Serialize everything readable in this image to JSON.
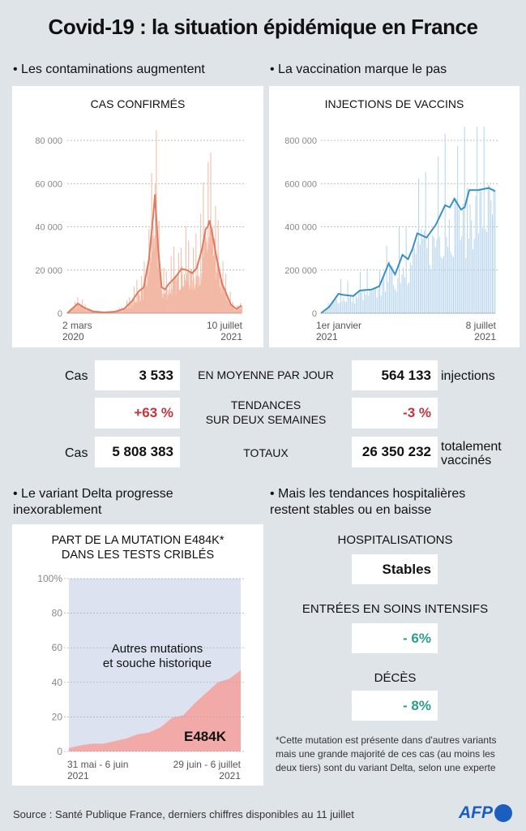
{
  "title": "Covid-19 : la situation épidémique en France",
  "bullets": {
    "cases": "• Les contaminations augmentent",
    "vaccine": "• La vaccination marque le pas",
    "variant": "• Le variant Delta progresse inexorablement",
    "hospital": "• Mais les tendances hospitalières restent stables ou en baisse"
  },
  "stats": {
    "row1": {
      "left_label": "Cas",
      "left_value": "3 533",
      "middle": "EN MOYENNE PAR JOUR",
      "right_value": "564 133",
      "right_label": "injections"
    },
    "row2": {
      "left_value": "+63 %",
      "middle_1": "TENDANCES",
      "middle_2": "SUR DEUX SEMAINES",
      "right_value": "-3 %"
    },
    "row3": {
      "left_label": "Cas",
      "left_value": "5 808 383",
      "middle": "TOTAUX",
      "right_value": "26 350 232",
      "right_label_1": "totalement",
      "right_label_2": "vaccinés"
    }
  },
  "hospital": {
    "hosp_label": "HOSPITALISATIONS",
    "hosp_value": "Stables",
    "icu_label": "ENTRÉES EN SOINS INTENSIFS",
    "icu_value": "- 6%",
    "deaths_label": "DÉCÈS",
    "deaths_value": "- 8%"
  },
  "footnote": "*Cette mutation est présente dans d'autres variants mais une grande majorité de ces cas (au moins les deux tiers) sont du variant Delta, selon une experte",
  "source": "Source : Santé Publique France, derniers chiffres disponibles au 11 juillet",
  "logo": "AFP",
  "colors": {
    "cases": "#e07a5f",
    "cases_bar": "#f2b9a5",
    "vaccine": "#3a8fc4",
    "vaccine_bar": "#b5d3ee",
    "variant_fill": "#f2aaa8",
    "others_fill": "#dde2f0",
    "red": "#c8323a",
    "teal": "#2a9d8f",
    "afp": "#1a5fc0"
  },
  "chart_data": [
    {
      "type": "line",
      "title": "CAS CONFIRMÉS",
      "xlabel_start": "2 mars",
      "xlabel_start_year": "2020",
      "xlabel_end": "10 juillet",
      "xlabel_end_year": "2021",
      "ylim": [
        0,
        80000
      ],
      "yticks": [
        "0",
        "20 000",
        "40 000",
        "60 000",
        "80 000"
      ],
      "grid": true,
      "series_note": "daily bars with 7-day average line",
      "x": [
        "2020-03-02",
        "2020-04-01",
        "2020-04-20",
        "2020-05-15",
        "2020-06-15",
        "2020-07-15",
        "2020-08-10",
        "2020-09-01",
        "2020-09-20",
        "2020-10-05",
        "2020-10-20",
        "2020-11-01",
        "2020-11-06",
        "2020-11-15",
        "2020-11-25",
        "2020-12-05",
        "2020-12-15",
        "2021-01-05",
        "2021-01-20",
        "2021-02-05",
        "2021-02-20",
        "2021-03-05",
        "2021-03-20",
        "2021-03-30",
        "2021-04-05",
        "2021-04-10",
        "2021-04-20",
        "2021-05-01",
        "2021-05-15",
        "2021-05-28",
        "2021-06-10",
        "2021-06-25",
        "2021-07-10"
      ],
      "y": [
        0,
        4500,
        2500,
        800,
        400,
        700,
        2000,
        5500,
        10000,
        12000,
        25000,
        45000,
        55000,
        30000,
        12000,
        11000,
        13500,
        17000,
        20500,
        20000,
        18500,
        21000,
        30000,
        39000,
        40000,
        43000,
        35000,
        25000,
        14000,
        9000,
        4000,
        2000,
        3533
      ]
    },
    {
      "type": "line",
      "title": "INJECTIONS DE VACCINS",
      "xlabel_start": "1er janvier",
      "xlabel_start_year": "2021",
      "xlabel_end": "8 juillet",
      "xlabel_end_year": "2021",
      "ylim": [
        0,
        800000
      ],
      "yticks": [
        "0",
        "200 000",
        "400 000",
        "600 000",
        "800 000"
      ],
      "grid": true,
      "x": [
        "2021-01-01",
        "2021-01-10",
        "2021-01-20",
        "2021-01-25",
        "2021-02-05",
        "2021-02-12",
        "2021-02-25",
        "2021-03-05",
        "2021-03-15",
        "2021-03-22",
        "2021-03-30",
        "2021-04-05",
        "2021-04-10",
        "2021-04-15",
        "2021-04-25",
        "2021-05-05",
        "2021-05-15",
        "2021-05-20",
        "2021-05-25",
        "2021-06-01",
        "2021-06-05",
        "2021-06-10",
        "2021-06-20",
        "2021-07-01",
        "2021-07-08"
      ],
      "y": [
        0,
        30000,
        90000,
        85000,
        80000,
        105000,
        110000,
        125000,
        230000,
        180000,
        270000,
        250000,
        300000,
        370000,
        350000,
        410000,
        500000,
        490000,
        530000,
        480000,
        490000,
        570000,
        570000,
        580000,
        564133
      ]
    },
    {
      "type": "area",
      "title_1": "PART DE LA MUTATION E484K*",
      "title_2": "DANS LES TESTS CRIBLÉS",
      "xlabel_start": "31 mai - 6 juin",
      "xlabel_start_year": "2021",
      "xlabel_end": "29 juin - 6 juillet",
      "xlabel_end_year": "2021",
      "ylim": [
        0,
        100
      ],
      "yticks": [
        "0",
        "20",
        "40",
        "60",
        "80",
        "100%"
      ],
      "grid": true,
      "series": [
        {
          "name": "E484K",
          "values": [
            2,
            3.5,
            4.5,
            4.5,
            6,
            7.5,
            10,
            11,
            14,
            19.5,
            21,
            28,
            34,
            40,
            42,
            47
          ]
        },
        {
          "name": "Autres mutations et souche historique"
        }
      ],
      "others_label_1": "Autres mutations",
      "others_label_2": "et souche historique"
    }
  ]
}
